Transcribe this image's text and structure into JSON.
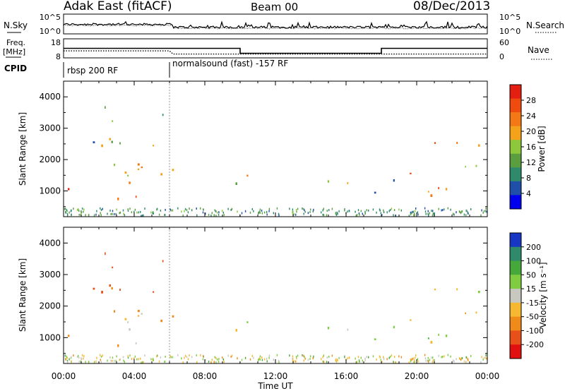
{
  "header": {
    "title": "Adak East (fitACF)",
    "beam": "Beam 00",
    "date": "08/Dec/2013"
  },
  "noise_panel": {
    "left_label": "N.Sky",
    "right_label": "N.Search",
    "ticks_left": [
      "10^5",
      "10^0"
    ],
    "ticks_right": [
      "10^5",
      "10^0"
    ]
  },
  "freq_panel": {
    "left_label_line1": "Freq.",
    "left_label_line2": "[MHz]",
    "right_label": "Nave",
    "ticks_left": [
      "18",
      "8"
    ],
    "ticks_right": [
      "60",
      "0"
    ],
    "freq_segments": [
      {
        "start_h": 0,
        "end_h": 10,
        "value": 13.0
      },
      {
        "start_h": 10,
        "end_h": 18,
        "value": 10.4
      },
      {
        "start_h": 18,
        "end_h": 24,
        "value": 13.0
      }
    ],
    "nave_segments": [
      {
        "start_h": 0,
        "end_h": 6,
        "value": 22
      },
      {
        "start_h": 6.2,
        "end_h": 24,
        "value": 12
      }
    ]
  },
  "cpid_panel": {
    "label": "CPID",
    "programs": [
      {
        "start_h": 0,
        "text": "rbsp 200 RF"
      },
      {
        "start_h": 6.0,
        "text": "normalsound (fast) -157 RF"
      }
    ]
  },
  "power_panel": {
    "ylabel": "Slant Range [km]",
    "yticks": [
      "4000",
      "3000",
      "2000",
      "1000"
    ],
    "colorbar_label": "Power [dB]",
    "colorbar_ticks": [
      "28",
      "24",
      "20",
      "16",
      "12",
      "8",
      "4"
    ],
    "colors": [
      "#0000ee",
      "#1f4fa8",
      "#2e8a6b",
      "#5a9e40",
      "#8cc73c",
      "#f5a21b",
      "#f47814",
      "#ef4b0f",
      "#e41e10"
    ]
  },
  "velocity_panel": {
    "ylabel": "Slant Range [km]",
    "yticks": [
      "4000",
      "3000",
      "2000",
      "1000"
    ],
    "colorbar_label": "Velocity [m s⁻¹]",
    "colorbar_ticks": [
      "200",
      "100",
      "50",
      "15",
      "-15",
      "-50",
      "-100",
      "-200"
    ],
    "colors": [
      "#1836c4",
      "#2e8a6b",
      "#46a83a",
      "#80cc40",
      "#c8c8c0",
      "#f5b830",
      "#f08a18",
      "#e8501a",
      "#e01010"
    ]
  },
  "x_axis": {
    "ticks": [
      "00:00",
      "04:00",
      "08:00",
      "12:00",
      "16:00",
      "20:00",
      "00:00"
    ],
    "label": "Time UT"
  },
  "chart_data": {
    "type": "heatmap",
    "title": "Adak East (fitACF)",
    "subtitle": "Beam 00",
    "date": "08/Dec/2013",
    "xlabel": "Time UT",
    "ylabel": "Slant Range [km]",
    "xlim_hours": [
      0,
      24
    ],
    "ylim_km": [
      180,
      4500
    ],
    "power_colorbar": {
      "label": "Power [dB]",
      "range": [
        0,
        30
      ]
    },
    "velocity_colorbar": {
      "label": "Velocity [m s⁻¹]",
      "range": [
        -250,
        250
      ]
    },
    "scatter_regions": [
      {
        "start_h": 0.0,
        "end_h": 6.5,
        "range_low_km": 700,
        "range_high_km": 2400,
        "power_db": 22,
        "velocity": -40
      },
      {
        "start_h": 0.3,
        "end_h": 5.8,
        "range_low_km": 2400,
        "range_high_km": 3800,
        "power_db": 12,
        "velocity": -130
      },
      {
        "start_h": 7.5,
        "end_h": 17.5,
        "range_low_km": 1150,
        "range_high_km": 1500,
        "power_db": 14,
        "velocity": -20
      },
      {
        "start_h": 16.5,
        "end_h": 19.5,
        "range_low_km": 850,
        "range_high_km": 1400,
        "power_db": 10,
        "velocity": 30
      },
      {
        "start_h": 19.0,
        "end_h": 24.0,
        "range_low_km": 800,
        "range_high_km": 2600,
        "power_db": 22,
        "velocity": -5
      }
    ]
  }
}
